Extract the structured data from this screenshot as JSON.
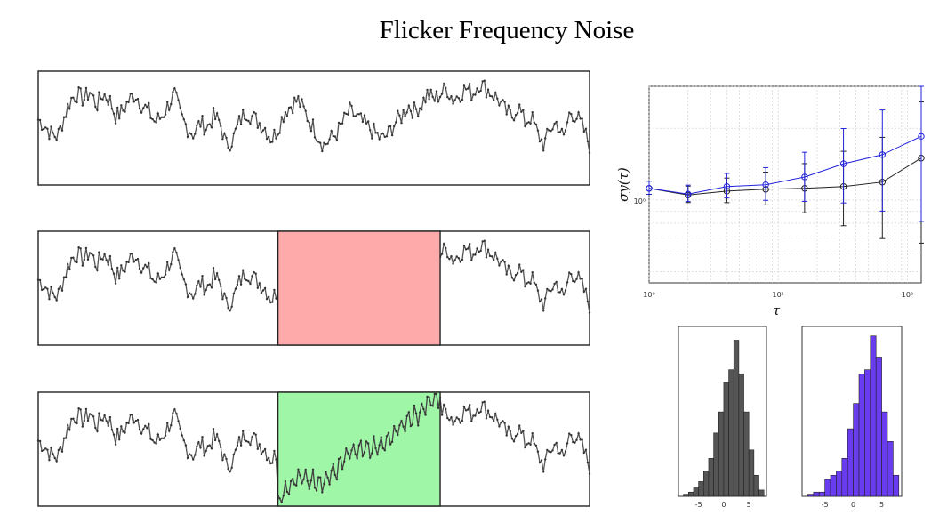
{
  "title": "Flicker Frequency Noise",
  "chart_data": [
    {
      "type": "line",
      "panel": "time-series-original",
      "note_series": "noise trace, approx. 300 samples, y unlabeled",
      "x_range": [
        0,
        300
      ],
      "y_range": [
        -10,
        10
      ],
      "shape": [
        1.5,
        0.5,
        -1,
        -1.5,
        2,
        5,
        6,
        5,
        6.5,
        4,
        6,
        5,
        2,
        3,
        5,
        6,
        4,
        3,
        1,
        2,
        4,
        6,
        2,
        0,
        -1,
        1,
        0,
        2,
        1,
        -3,
        -2,
        1,
        3,
        2,
        1,
        0,
        -2,
        0,
        3,
        4,
        5,
        3,
        1,
        -1,
        -3,
        -2,
        -1,
        1,
        3,
        2,
        1,
        0,
        -1,
        -2,
        -1,
        1,
        2,
        4,
        3,
        4,
        6,
        5,
        6,
        7,
        5,
        6,
        7,
        6,
        8,
        7,
        6,
        5,
        3,
        2,
        4,
        1,
        2,
        -1,
        -3,
        0,
        1,
        -2,
        3,
        2,
        0,
        -3
      ]
    },
    {
      "type": "line",
      "panel": "time-series-masked",
      "highlight": {
        "color": "#ffaaaa",
        "x_range": [
          130,
          218
        ]
      },
      "y_range": [
        -10,
        10
      ]
    },
    {
      "type": "line",
      "panel": "time-series-filled",
      "highlight": {
        "color": "#9af5a2",
        "x_range": [
          130,
          218
        ]
      },
      "y_range": [
        -10,
        10
      ]
    },
    {
      "type": "line",
      "panel": "allan-deviation",
      "xscale": "log",
      "yscale": "log",
      "xlabel": "τ",
      "ylabel": "σy(τ)",
      "x_ticks": [
        "10⁰",
        "10¹",
        "10²"
      ],
      "y_ticks": [
        "10⁰"
      ],
      "xlim": [
        1,
        128
      ],
      "series": [
        {
          "color": "#222222",
          "x": [
            1,
            2,
            4,
            8,
            16,
            32,
            64,
            128
          ],
          "y": [
            1.12,
            1.05,
            1.09,
            1.11,
            1.12,
            1.14,
            1.19,
            1.5
          ],
          "err": [
            0.08,
            0.1,
            0.15,
            0.2,
            0.3,
            0.45,
            0.6,
            0.8
          ]
        },
        {
          "color": "#2222dd",
          "x": [
            1,
            2,
            4,
            8,
            16,
            32,
            64,
            128
          ],
          "y": [
            1.12,
            1.06,
            1.14,
            1.16,
            1.25,
            1.42,
            1.55,
            1.85
          ],
          "err": [
            0.08,
            0.1,
            0.15,
            0.2,
            0.3,
            0.45,
            0.6,
            0.8
          ]
        }
      ]
    },
    {
      "type": "bar",
      "panel": "histogram-gray",
      "color": "#555555",
      "x_ticks": [
        "-5",
        "0",
        "5"
      ],
      "bins_x": [
        -8.5,
        -7.5,
        -6.5,
        -5.5,
        -4.5,
        -3.5,
        -2.5,
        -1.5,
        -0.5,
        0.5,
        1.5,
        2.5,
        3.5,
        4.5,
        5.5,
        6.5,
        7.5
      ],
      "counts": [
        0,
        1,
        2,
        4,
        7,
        12,
        18,
        30,
        40,
        54,
        60,
        74,
        58,
        40,
        22,
        10,
        3
      ]
    },
    {
      "type": "bar",
      "panel": "histogram-blue",
      "color": "#6a3cf0",
      "x_ticks": [
        "-5",
        "0",
        "5"
      ],
      "bins_x": [
        -8.5,
        -7.5,
        -6.5,
        -5.5,
        -4.5,
        -3.5,
        -2.5,
        -1.5,
        -0.5,
        0.5,
        1.5,
        2.5,
        3.5,
        4.5,
        5.5,
        6.5,
        7.5
      ],
      "counts": [
        0,
        1,
        2,
        2,
        8,
        10,
        12,
        18,
        32,
        44,
        58,
        60,
        76,
        66,
        40,
        26,
        10
      ]
    }
  ]
}
